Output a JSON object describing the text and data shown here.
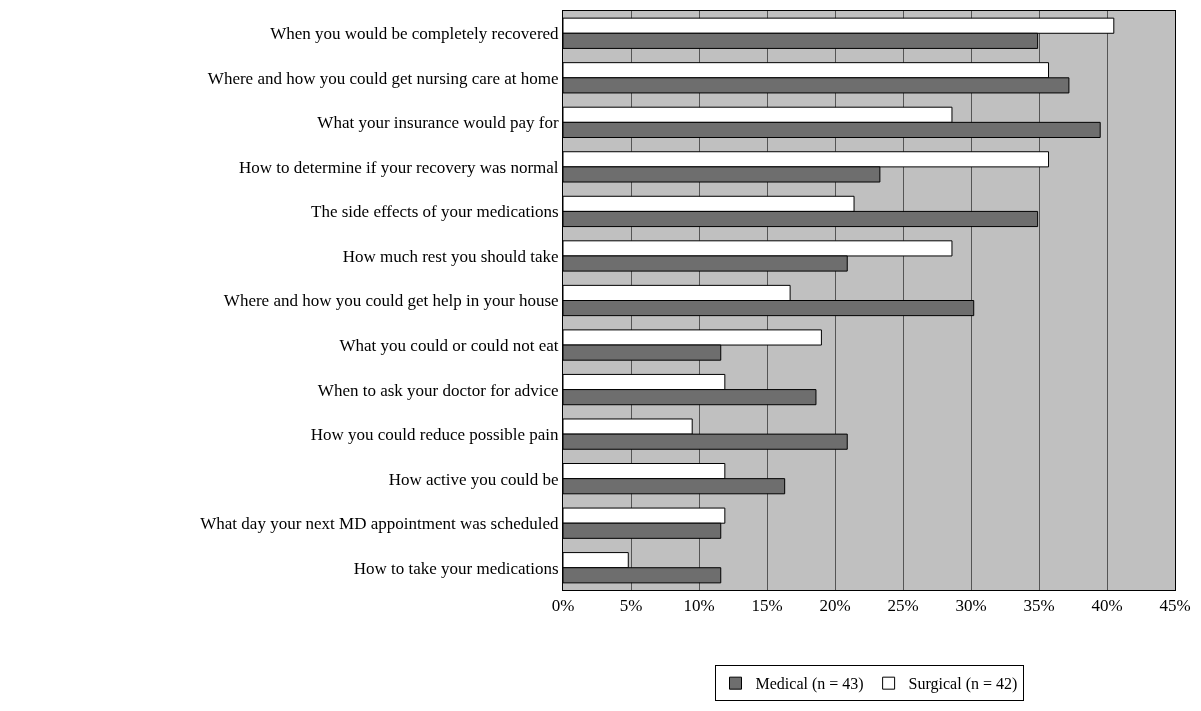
{
  "chart_data": {
    "type": "bar",
    "orientation": "horizontal",
    "categories": [
      "When you would be completely recovered",
      "Where and how you could get nursing care at home",
      "What your insurance would pay for",
      "How to determine if your recovery was normal",
      "The side effects of your medications",
      "How much rest you should take",
      "Where and how you could get help in your house",
      "What you could or could not eat",
      "When to ask your doctor for advice",
      "How you could reduce possible pain",
      "How active you could be",
      "What day your next MD appointment was scheduled",
      "How to take your medications"
    ],
    "series": [
      {
        "name": "Medical (n = 43)",
        "color": "#6e6e6e",
        "values": [
          34.9,
          37.2,
          39.5,
          23.3,
          34.9,
          20.9,
          30.2,
          11.6,
          18.6,
          20.9,
          16.3,
          11.6,
          11.6
        ]
      },
      {
        "name": "Surgical (n = 42)",
        "color": "#ffffff",
        "values": [
          40.5,
          35.7,
          28.6,
          35.7,
          21.4,
          28.6,
          16.7,
          19.0,
          11.9,
          9.5,
          11.9,
          11.9,
          4.8
        ]
      }
    ],
    "xlim": [
      0,
      45
    ],
    "xticks": [
      {
        "value": 0,
        "label": "0%"
      },
      {
        "value": 5,
        "label": "5%"
      },
      {
        "value": 10,
        "label": "10%"
      },
      {
        "value": 15,
        "label": "15%"
      },
      {
        "value": 20,
        "label": "20%"
      },
      {
        "value": 25,
        "label": "25%"
      },
      {
        "value": 30,
        "label": "30%"
      },
      {
        "value": 35,
        "label": "35%"
      },
      {
        "value": 40,
        "label": "40%"
      },
      {
        "value": 45,
        "label": "45%"
      }
    ],
    "grid": "x",
    "legend": "bottom"
  }
}
